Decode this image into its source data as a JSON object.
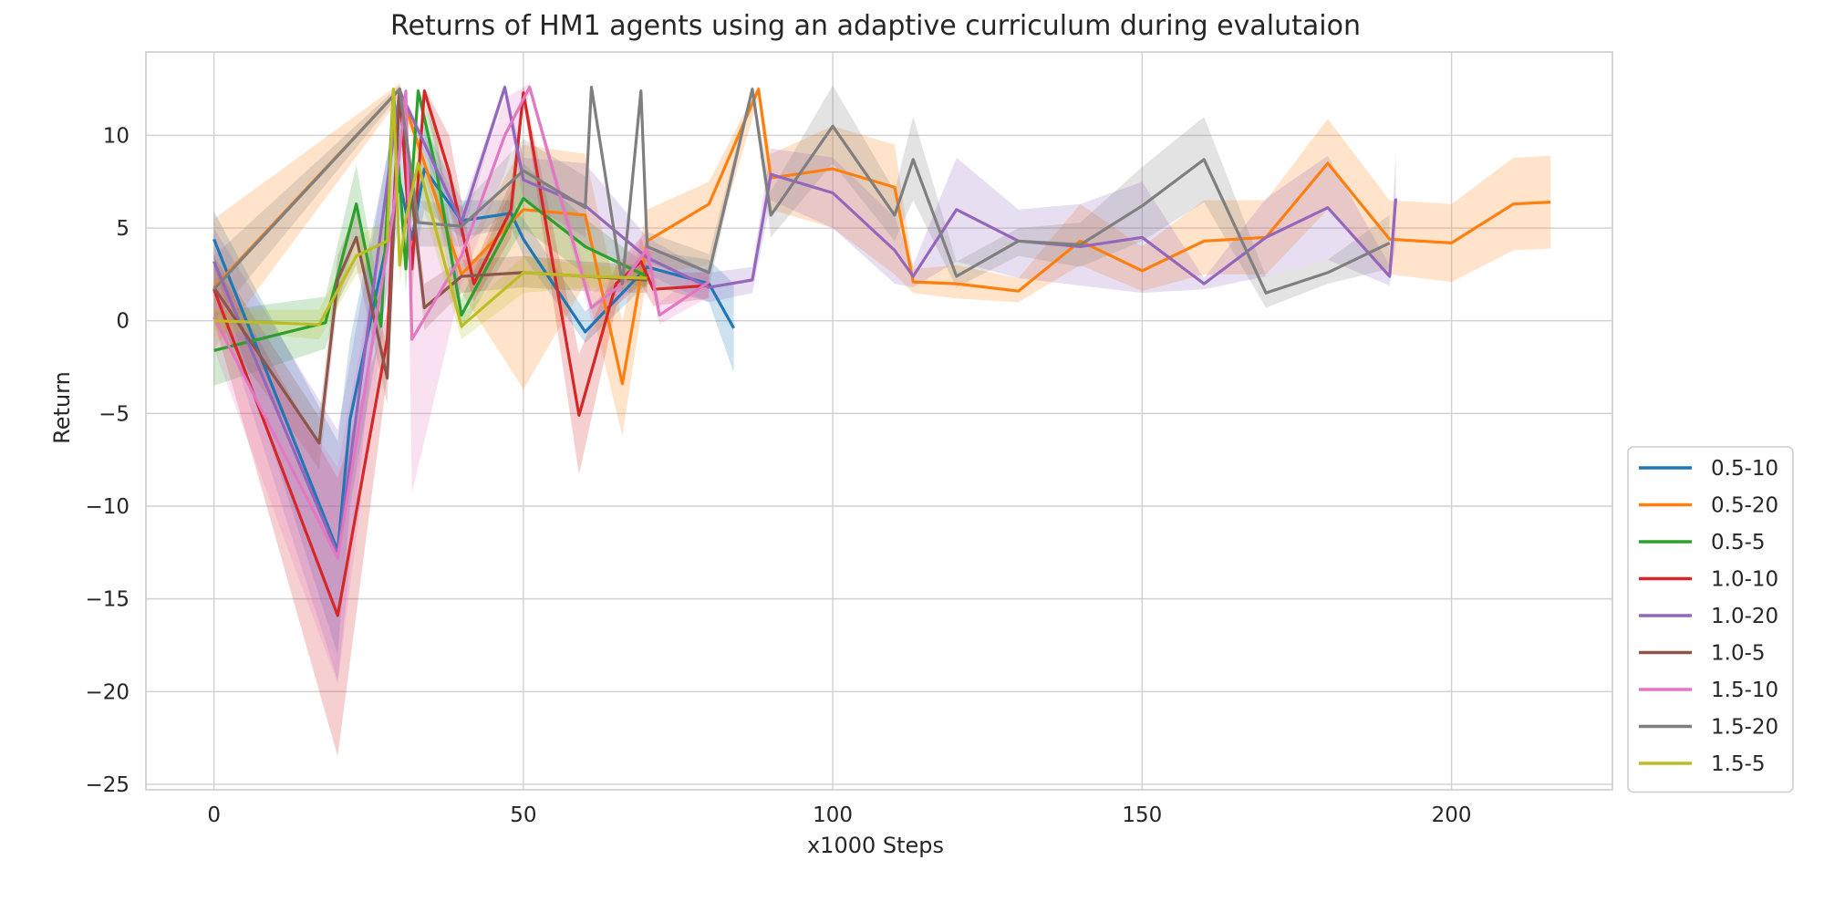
{
  "chart_data": {
    "type": "line",
    "title": "Returns of HM1 agents using an adaptive curriculum during evalutaion",
    "xlabel": "x1000 Steps",
    "ylabel": "Return",
    "xlim": [
      -11,
      226
    ],
    "ylim": [
      -25.3,
      14.5
    ],
    "xticks": [
      0,
      50,
      100,
      150,
      200
    ],
    "yticks": [
      10,
      5,
      0,
      -5,
      -10,
      -15,
      -20,
      -25
    ],
    "xtick_labels": [
      "0",
      "50",
      "100",
      "150",
      "200"
    ],
    "ytick_labels": [
      "10",
      "5",
      "0",
      "−5",
      "−10",
      "−15",
      "−20",
      "−25"
    ],
    "grid": true,
    "legend_position": "lower-right",
    "series": [
      {
        "name": "0.5-10",
        "color": "#1f77b4",
        "x": [
          0,
          20,
          22,
          30,
          32,
          34,
          40,
          48,
          50,
          60,
          70,
          80,
          84
        ],
        "y": [
          4.4,
          -12.4,
          -5.3,
          7.5,
          4.4,
          8.2,
          5.4,
          5.8,
          4.4,
          -0.6,
          2.9,
          2.0,
          -0.4
        ],
        "lower": [
          3.0,
          -18.0,
          -10.0,
          5.5,
          2.5,
          6.0,
          4.5,
          5.0,
          3.5,
          -1.2,
          2.0,
          1.0,
          -2.8
        ],
        "upper": [
          5.9,
          -6.5,
          -1.0,
          12.2,
          6.0,
          10.5,
          6.5,
          6.5,
          5.5,
          0.5,
          3.8,
          3.3,
          2.0
        ]
      },
      {
        "name": "0.5-20",
        "color": "#ff7f0e",
        "x": [
          0,
          30,
          40,
          50,
          60,
          66,
          70,
          80,
          88,
          90,
          100,
          110,
          113,
          120,
          130,
          140,
          150,
          160,
          170,
          180,
          190,
          200,
          210,
          216
        ],
        "y": [
          1.8,
          12.5,
          2.5,
          6.0,
          5.7,
          -3.4,
          4.3,
          6.3,
          12.5,
          7.7,
          8.2,
          7.2,
          2.1,
          2.0,
          1.6,
          4.3,
          2.7,
          4.3,
          4.5,
          8.5,
          4.4,
          4.2,
          6.3,
          6.4
        ],
        "lower": [
          -1.5,
          12.0,
          1.5,
          -3.7,
          2.0,
          -6.2,
          2.5,
          3.0,
          12.0,
          6.0,
          5.0,
          2.5,
          1.5,
          1.2,
          1.0,
          3.0,
          1.6,
          2.5,
          2.5,
          6.0,
          2.5,
          2.1,
          3.8,
          3.9
        ],
        "upper": [
          5.5,
          12.8,
          3.5,
          9.5,
          9.0,
          0.0,
          6.0,
          7.5,
          12.7,
          9.0,
          10.5,
          9.5,
          2.8,
          3.0,
          2.3,
          6.3,
          4.0,
          6.5,
          6.5,
          10.9,
          6.5,
          6.3,
          8.8,
          8.9
        ]
      },
      {
        "name": "0.5-5",
        "color": "#2ca02c",
        "x": [
          0,
          18,
          23,
          27,
          29,
          31,
          33,
          36,
          40,
          50,
          60,
          70
        ],
        "y": [
          -1.6,
          -0.1,
          6.3,
          -0.3,
          12.4,
          2.8,
          12.4,
          8.0,
          0.3,
          6.6,
          4.0,
          2.4
        ],
        "lower": [
          -3.5,
          -1.5,
          4.5,
          -1.5,
          12.0,
          1.5,
          12.0,
          6.0,
          -0.5,
          5.0,
          2.5,
          1.8
        ],
        "upper": [
          0.5,
          1.3,
          8.4,
          1.0,
          12.6,
          4.0,
          12.6,
          10.0,
          1.2,
          8.5,
          5.5,
          3.0
        ]
      },
      {
        "name": "1.0-10",
        "color": "#d62728",
        "x": [
          0,
          20,
          28,
          30,
          32,
          34,
          38,
          42,
          48,
          50,
          59,
          65,
          69,
          71,
          80
        ],
        "y": [
          1.7,
          -15.9,
          -1.0,
          12.5,
          2.8,
          12.4,
          8.0,
          2.0,
          6.0,
          12.3,
          -5.1,
          2.0,
          3.2,
          1.7,
          1.9
        ],
        "lower": [
          0.0,
          -23.5,
          -3.0,
          12.0,
          1.0,
          12.0,
          6.0,
          1.0,
          4.5,
          11.8,
          -8.3,
          0.8,
          2.0,
          0.8,
          1.2
        ],
        "upper": [
          3.2,
          -8.5,
          0.5,
          12.7,
          4.5,
          12.6,
          10.0,
          3.0,
          7.5,
          12.7,
          -1.8,
          3.0,
          4.5,
          2.6,
          2.6
        ]
      },
      {
        "name": "1.0-20",
        "color": "#9467bd",
        "x": [
          0,
          20,
          30,
          40,
          47,
          50,
          60,
          70,
          80,
          87,
          90,
          100,
          110,
          113,
          120,
          130,
          140,
          150,
          160,
          170,
          180,
          190,
          191
        ],
        "y": [
          3.2,
          -12.6,
          12.4,
          5.3,
          12.6,
          7.6,
          6.2,
          3.4,
          1.8,
          2.2,
          7.9,
          6.9,
          3.8,
          2.4,
          6.0,
          4.3,
          4.0,
          4.5,
          2.0,
          4.5,
          6.1,
          2.4,
          6.6
        ],
        "lower": [
          1.5,
          -19.4,
          12.0,
          4.5,
          12.3,
          6.5,
          4.0,
          2.5,
          1.0,
          1.5,
          6.5,
          5.0,
          2.0,
          1.8,
          3.2,
          2.3,
          1.9,
          1.5,
          1.7,
          2.4,
          3.3,
          1.9,
          4.2
        ],
        "upper": [
          5.0,
          -5.9,
          12.6,
          6.0,
          12.8,
          8.8,
          8.5,
          4.5,
          2.6,
          2.9,
          9.3,
          8.8,
          5.6,
          3.0,
          8.8,
          6.0,
          6.3,
          7.5,
          2.3,
          6.6,
          8.9,
          3.0,
          9.1
        ]
      },
      {
        "name": "1.0-5",
        "color": "#8c564b",
        "x": [
          0,
          17,
          20,
          23,
          28,
          30,
          34,
          40,
          50,
          60,
          70
        ],
        "y": [
          1.8,
          -6.6,
          2.2,
          4.5,
          -3.1,
          12.5,
          0.7,
          2.4,
          2.6,
          2.4,
          2.2
        ],
        "lower": [
          0.0,
          -8.0,
          1.0,
          3.0,
          -4.5,
          12.0,
          -0.5,
          1.5,
          1.8,
          1.6,
          1.5
        ],
        "upper": [
          3.5,
          -5.2,
          3.5,
          6.0,
          -1.5,
          12.7,
          2.0,
          3.3,
          3.5,
          3.2,
          3.0
        ]
      },
      {
        "name": "1.5-10",
        "color": "#e377c2",
        "x": [
          0,
          20,
          29,
          31,
          32,
          40,
          47,
          51,
          61,
          66,
          70,
          72,
          80
        ],
        "y": [
          0.2,
          -12.8,
          5.9,
          12.4,
          -1.0,
          3.5,
          10.0,
          12.6,
          0.7,
          2.0,
          3.9,
          0.3,
          2.1
        ],
        "lower": [
          -1.5,
          -19.6,
          4.0,
          12.0,
          -9.3,
          2.0,
          8.0,
          12.3,
          0.0,
          1.2,
          2.9,
          -0.2,
          1.3
        ],
        "upper": [
          1.8,
          -7.9,
          8.0,
          12.6,
          5.0,
          5.0,
          12.0,
          12.8,
          1.5,
          2.8,
          5.0,
          1.0,
          3.0
        ]
      },
      {
        "name": "1.5-20",
        "color": "#7f7f7f",
        "x": [
          0,
          30,
          33,
          40,
          50,
          60,
          61,
          66,
          69,
          70,
          80,
          87,
          90,
          100,
          110,
          113,
          120,
          130,
          140,
          150,
          160,
          170,
          180,
          190
        ],
        "y": [
          1.7,
          12.5,
          5.3,
          5.1,
          8.1,
          6.1,
          12.6,
          2.0,
          12.4,
          4.0,
          2.6,
          12.5,
          5.7,
          10.5,
          5.7,
          8.7,
          2.4,
          4.3,
          4.1,
          6.2,
          8.7,
          1.5,
          2.6,
          4.2
        ],
        "lower": [
          0.0,
          12.2,
          4.0,
          4.0,
          6.5,
          4.5,
          12.4,
          1.5,
          12.2,
          3.2,
          1.8,
          12.3,
          4.5,
          8.5,
          4.3,
          6.5,
          1.8,
          3.5,
          2.9,
          4.3,
          6.4,
          0.7,
          2.0,
          2.8
        ],
        "upper": [
          3.5,
          12.7,
          6.5,
          6.2,
          9.8,
          7.8,
          12.7,
          2.6,
          12.6,
          4.8,
          3.6,
          12.7,
          7.0,
          12.7,
          7.0,
          11.0,
          3.2,
          5.0,
          5.3,
          8.3,
          11.0,
          2.4,
          3.3,
          5.7
        ]
      },
      {
        "name": "1.5-5",
        "color": "#bcbd22",
        "x": [
          0,
          17,
          23,
          28,
          29,
          30,
          31,
          33,
          40,
          50,
          60,
          70
        ],
        "y": [
          0.0,
          -0.2,
          3.5,
          4.3,
          12.5,
          3.0,
          5.5,
          8.5,
          -0.3,
          2.6,
          2.4,
          2.3
        ],
        "lower": [
          -0.5,
          -1.0,
          2.5,
          3.0,
          12.2,
          2.0,
          4.0,
          7.0,
          -1.0,
          1.5,
          1.8,
          1.8
        ],
        "upper": [
          0.6,
          0.6,
          4.5,
          5.5,
          12.7,
          4.0,
          7.0,
          10.0,
          0.3,
          3.5,
          3.0,
          2.8
        ]
      }
    ]
  }
}
